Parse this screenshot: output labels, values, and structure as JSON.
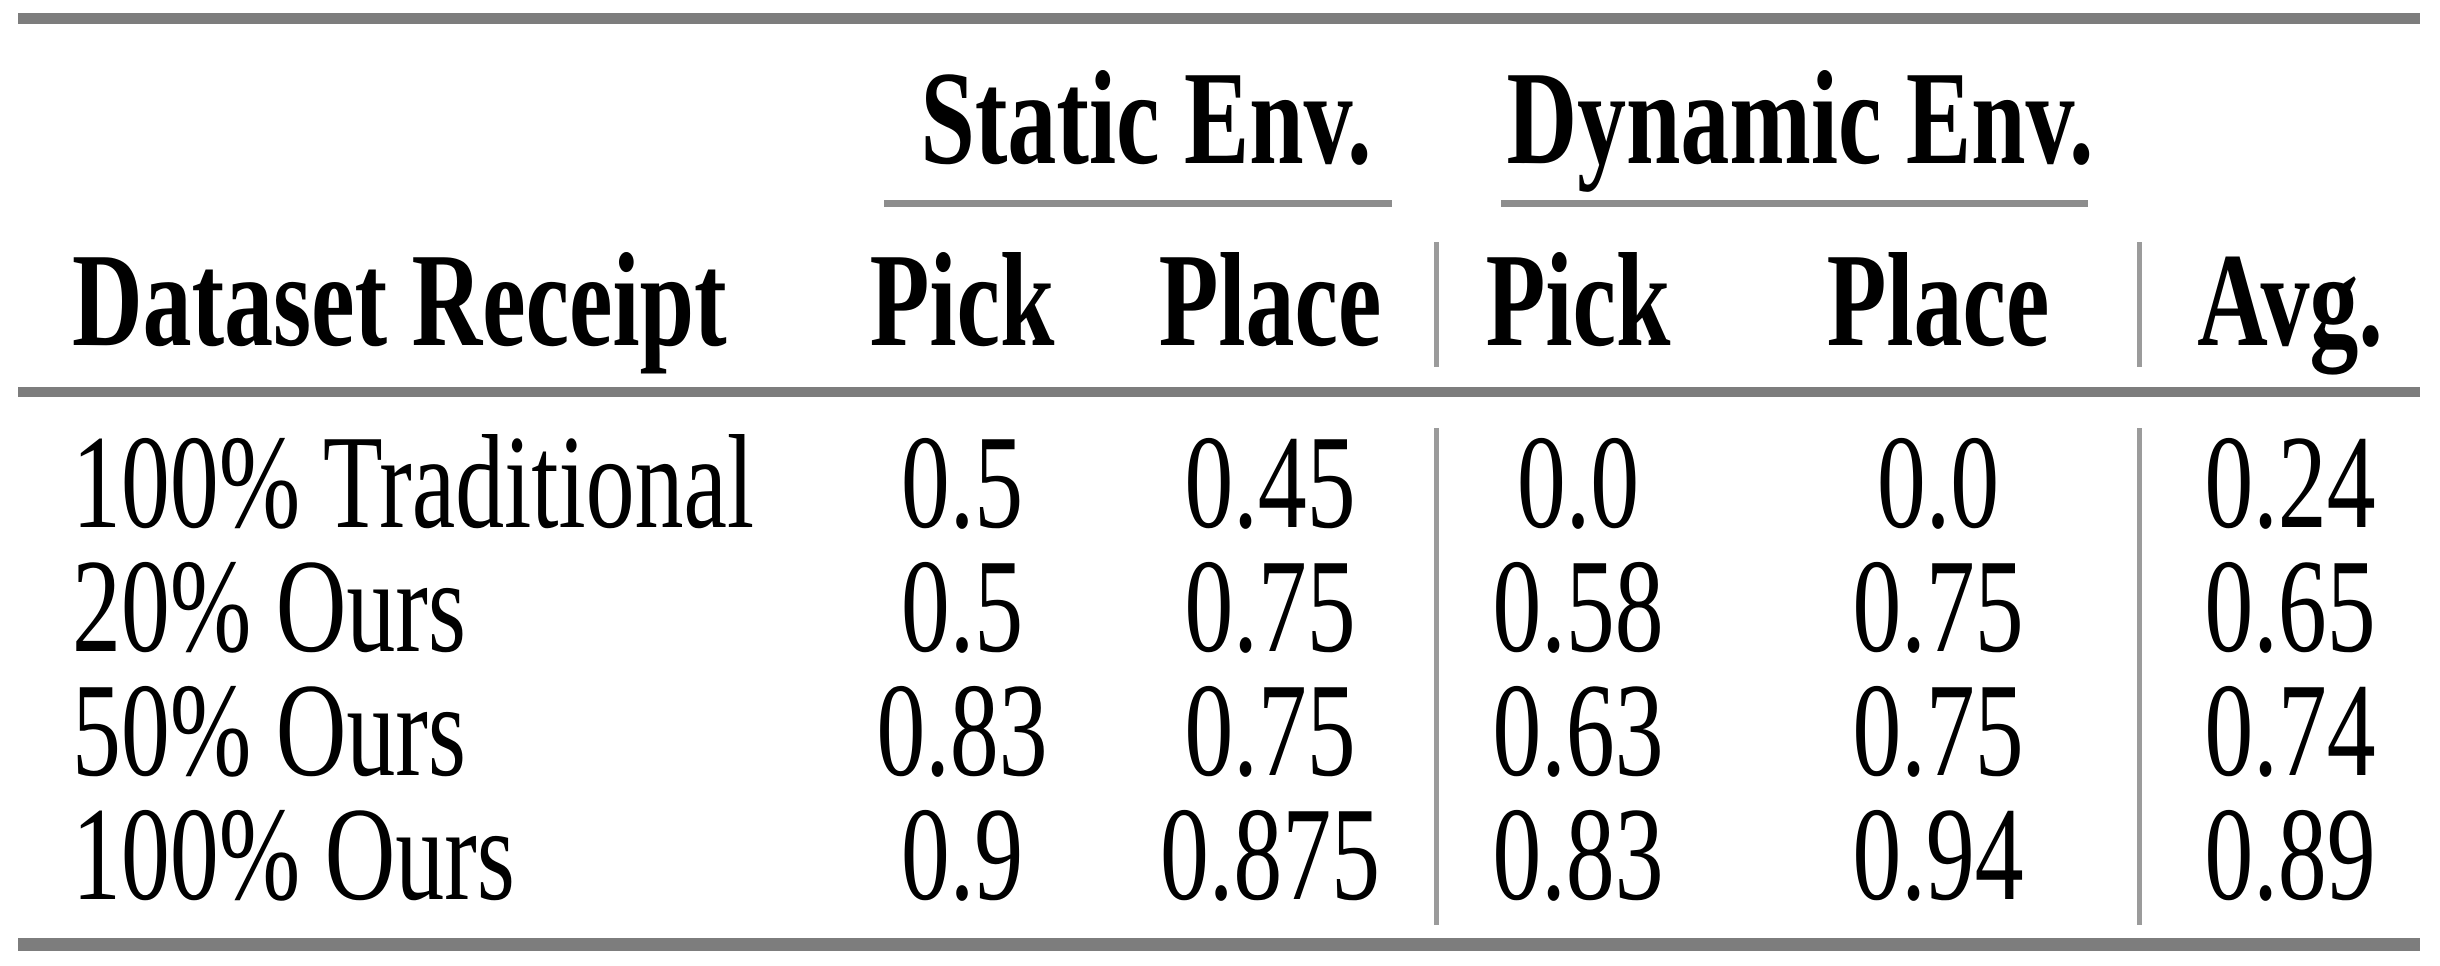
{
  "table": {
    "group_headers": [
      {
        "label": "Static Env."
      },
      {
        "label": "Dynamic Env."
      }
    ],
    "columns": [
      "Dataset Receipt",
      "Pick",
      "Place",
      "Pick",
      "Place",
      "Avg."
    ],
    "rows": [
      {
        "label": "100% Traditional",
        "values": [
          "0.5",
          "0.45",
          "0.0",
          "0.0",
          "0.24"
        ]
      },
      {
        "label": "20% Ours",
        "values": [
          "0.5",
          "0.75",
          "0.58",
          "0.75",
          "0.65"
        ]
      },
      {
        "label": "50% Ours",
        "values": [
          "0.83",
          "0.75",
          "0.63",
          "0.75",
          "0.74"
        ]
      },
      {
        "label": "100% Ours",
        "values": [
          "0.9",
          "0.875",
          "0.83",
          "0.94",
          "0.89"
        ]
      }
    ],
    "colors": {
      "rule_thick": "#7d7d7d",
      "rule_thin": "#8d8d8d",
      "vline": "#9b9b9b",
      "text": "#000000",
      "background": "#ffffff"
    }
  }
}
